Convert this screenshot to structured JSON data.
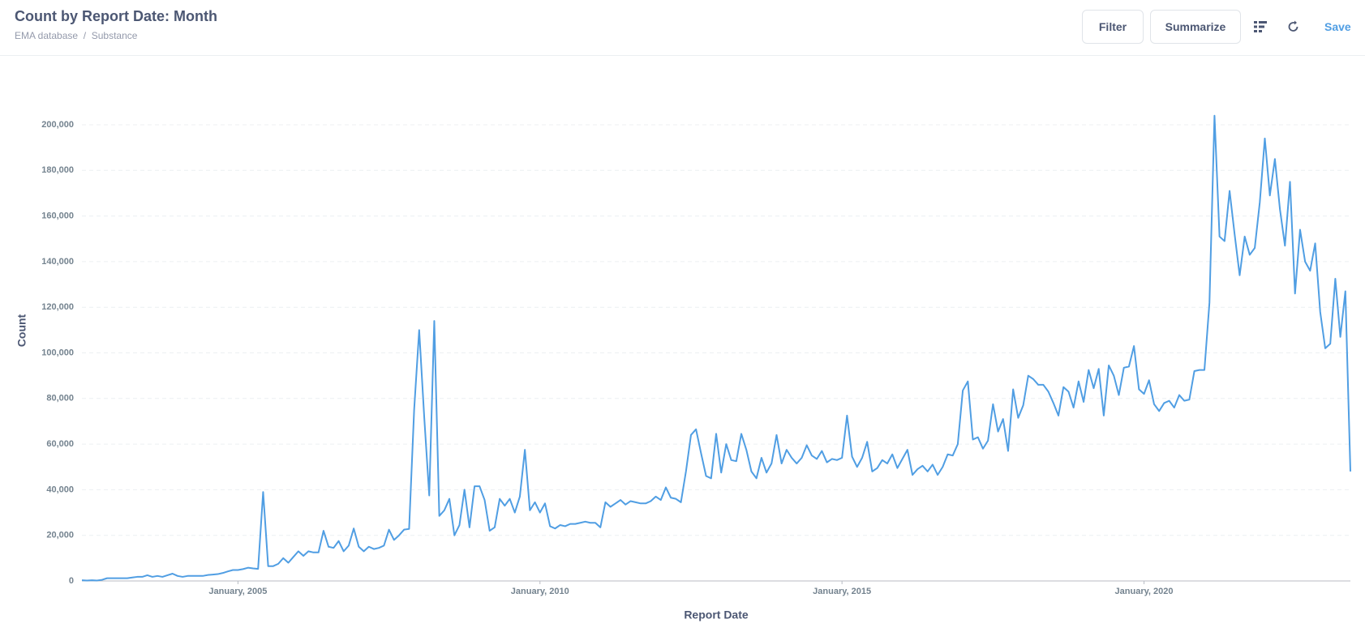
{
  "header": {
    "title": "Count by Report Date: Month",
    "breadcrumbs": [
      "EMA database",
      "Substance"
    ],
    "buttons": [
      "Filter",
      "Summarize"
    ],
    "save": "Save"
  },
  "chart_data": {
    "type": "line",
    "x_label": "Report Date",
    "y_label": "Count",
    "color": "#509ee3",
    "grid": true,
    "x": [
      "2002-06",
      "2002-07",
      "2002-08",
      "2002-09",
      "2002-10",
      "2002-11",
      "2002-12",
      "2003-01",
      "2003-02",
      "2003-03",
      "2003-04",
      "2003-05",
      "2003-06",
      "2003-07",
      "2003-08",
      "2003-09",
      "2003-10",
      "2003-11",
      "2003-12",
      "2004-01",
      "2004-02",
      "2004-03",
      "2004-04",
      "2004-05",
      "2004-06",
      "2004-07",
      "2004-08",
      "2004-09",
      "2004-10",
      "2004-11",
      "2004-12",
      "2005-01",
      "2005-02",
      "2005-03",
      "2005-04",
      "2005-05",
      "2005-06",
      "2005-07",
      "2005-08",
      "2005-09",
      "2005-10",
      "2005-11",
      "2005-12",
      "2006-01",
      "2006-02",
      "2006-03",
      "2006-04",
      "2006-05",
      "2006-06",
      "2006-07",
      "2006-08",
      "2006-09",
      "2006-10",
      "2006-11",
      "2006-12",
      "2007-01",
      "2007-02",
      "2007-03",
      "2007-04",
      "2007-05",
      "2007-06",
      "2007-07",
      "2007-08",
      "2007-09",
      "2007-10",
      "2007-11",
      "2007-12",
      "2008-01",
      "2008-02",
      "2008-03",
      "2008-04",
      "2008-05",
      "2008-06",
      "2008-07",
      "2008-08",
      "2008-09",
      "2008-10",
      "2008-11",
      "2008-12",
      "2009-01",
      "2009-02",
      "2009-03",
      "2009-04",
      "2009-05",
      "2009-06",
      "2009-07",
      "2009-08",
      "2009-09",
      "2009-10",
      "2009-11",
      "2009-12",
      "2010-01",
      "2010-02",
      "2010-03",
      "2010-04",
      "2010-05",
      "2010-06",
      "2010-07",
      "2010-08",
      "2010-09",
      "2010-10",
      "2010-11",
      "2010-12",
      "2011-01",
      "2011-02",
      "2011-03",
      "2011-04",
      "2011-05",
      "2011-06",
      "2011-07",
      "2011-08",
      "2011-09",
      "2011-10",
      "2011-11",
      "2011-12",
      "2012-01",
      "2012-02",
      "2012-03",
      "2012-04",
      "2012-05",
      "2012-06",
      "2012-07",
      "2012-08",
      "2012-09",
      "2012-10",
      "2012-11",
      "2012-12",
      "2013-01",
      "2013-02",
      "2013-03",
      "2013-04",
      "2013-05",
      "2013-06",
      "2013-07",
      "2013-08",
      "2013-09",
      "2013-10",
      "2013-11",
      "2013-12",
      "2014-01",
      "2014-02",
      "2014-03",
      "2014-04",
      "2014-05",
      "2014-06",
      "2014-07",
      "2014-08",
      "2014-09",
      "2014-10",
      "2014-11",
      "2014-12",
      "2015-01",
      "2015-02",
      "2015-03",
      "2015-04",
      "2015-05",
      "2015-06",
      "2015-07",
      "2015-08",
      "2015-09",
      "2015-10",
      "2015-11",
      "2015-12",
      "2016-01",
      "2016-02",
      "2016-03",
      "2016-04",
      "2016-05",
      "2016-06",
      "2016-07",
      "2016-08",
      "2016-09",
      "2016-10",
      "2016-11",
      "2016-12",
      "2017-01",
      "2017-02",
      "2017-03",
      "2017-04",
      "2017-05",
      "2017-06",
      "2017-07",
      "2017-08",
      "2017-09",
      "2017-10",
      "2017-11",
      "2017-12",
      "2018-01",
      "2018-02",
      "2018-03",
      "2018-04",
      "2018-05",
      "2018-06",
      "2018-07",
      "2018-08",
      "2018-09",
      "2018-10",
      "2018-11",
      "2018-12",
      "2019-01",
      "2019-02",
      "2019-03",
      "2019-04",
      "2019-05",
      "2019-06",
      "2019-07",
      "2019-08",
      "2019-09",
      "2019-10",
      "2019-11",
      "2019-12",
      "2020-01",
      "2020-02",
      "2020-03",
      "2020-04",
      "2020-05",
      "2020-06",
      "2020-07",
      "2020-08",
      "2020-09",
      "2020-10",
      "2020-11",
      "2020-12",
      "2021-01",
      "2021-02",
      "2021-03",
      "2021-04",
      "2021-05",
      "2021-06",
      "2021-07",
      "2021-08",
      "2021-09",
      "2021-10",
      "2021-11",
      "2021-12",
      "2022-01",
      "2022-02",
      "2022-03",
      "2022-04",
      "2022-05",
      "2022-06",
      "2022-07",
      "2022-08",
      "2022-09",
      "2022-10",
      "2022-11",
      "2022-12",
      "2023-01",
      "2023-02",
      "2023-03",
      "2023-04",
      "2023-05",
      "2023-06"
    ],
    "values": [
      300,
      200,
      300,
      200,
      500,
      1200,
      1200,
      1200,
      1200,
      1200,
      1500,
      1800,
      1800,
      2500,
      1800,
      2200,
      1800,
      2500,
      3200,
      2200,
      1800,
      2200,
      2200,
      2200,
      2200,
      2600,
      2800,
      3000,
      3500,
      4200,
      4800,
      4800,
      5200,
      5800,
      5500,
      5300,
      39000,
      6500,
      6500,
      7500,
      10000,
      8000,
      10500,
      13000,
      11000,
      13000,
      12500,
      12500,
      22000,
      15000,
      14500,
      17500,
      13000,
      15500,
      23000,
      15000,
      13000,
      15000,
      14000,
      14500,
      15500,
      22500,
      18000,
      20000,
      22500,
      22800,
      75000,
      110000,
      72000,
      37500,
      114000,
      28500,
      31000,
      36000,
      20000,
      24500,
      40000,
      23500,
      41500,
      41500,
      35500,
      22000,
      23500,
      36000,
      33000,
      36000,
      30000,
      37000,
      57500,
      31000,
      34500,
      30000,
      34000,
      24000,
      23000,
      24500,
      24000,
      25000,
      25000,
      25500,
      26000,
      25500,
      25500,
      23500,
      34500,
      32500,
      34000,
      35500,
      33500,
      35000,
      34500,
      34000,
      34000,
      35000,
      37000,
      35500,
      41000,
      36500,
      36000,
      34500,
      48000,
      64000,
      66500,
      56000,
      46000,
      45000,
      64500,
      47500,
      60000,
      53000,
      52500,
      64500,
      57500,
      48000,
      45000,
      54000,
      47500,
      51500,
      64000,
      51500,
      57500,
      54000,
      51500,
      54000,
      59500,
      55000,
      53500,
      57000,
      52000,
      53500,
      53000,
      54000,
      72500,
      54500,
      50000,
      54000,
      61000,
      48000,
      49500,
      53000,
      51500,
      55500,
      49500,
      53500,
      57500,
      46500,
      49000,
      50500,
      48000,
      51000,
      46500,
      50000,
      55500,
      55000,
      60000,
      83500,
      87500,
      62000,
      63000,
      58000,
      61500,
      77500,
      65500,
      71000,
      57000,
      84000,
      71500,
      77000,
      90000,
      88500,
      86000,
      86000,
      83000,
      78000,
      72500,
      85000,
      83000,
      76000,
      87500,
      78500,
      92500,
      84500,
      93000,
      72500,
      94500,
      90000,
      81500,
      93500,
      94000,
      103000,
      84000,
      82000,
      88000,
      77500,
      74500,
      78000,
      79000,
      76000,
      81500,
      79000,
      79500,
      92000,
      92500,
      92500,
      122000,
      204000,
      151000,
      149000,
      171000,
      152000,
      134000,
      151000,
      143000,
      146000,
      166000,
      194000,
      169000,
      185000,
      163000,
      147000,
      175000,
      126000,
      154000,
      140000,
      136000,
      148000,
      118000,
      102000,
      104000,
      132500,
      107000,
      127000,
      48000
    ],
    "xlim": [
      "2002-06",
      "2023-06"
    ],
    "xticks": [
      {
        "value": "2005-01",
        "label": "January, 2005"
      },
      {
        "value": "2010-01",
        "label": "January, 2010"
      },
      {
        "value": "2015-01",
        "label": "January, 2015"
      },
      {
        "value": "2020-01",
        "label": "January, 2020"
      }
    ],
    "ylim": [
      0,
      210000
    ],
    "yticks": [
      0,
      {
        "value": 20000,
        "label": "20,000"
      },
      {
        "value": 40000,
        "label": "40,000"
      },
      {
        "value": 60000,
        "label": "60,000"
      },
      {
        "value": 80000,
        "label": "80,000"
      },
      {
        "value": 100000,
        "label": "100,000"
      },
      {
        "value": 120000,
        "label": "120,000"
      },
      {
        "value": 140000,
        "label": "140,000"
      },
      {
        "value": 160000,
        "label": "160,000"
      },
      {
        "value": 180000,
        "label": "180,000"
      },
      {
        "value": 200000,
        "label": "200,000"
      }
    ]
  }
}
